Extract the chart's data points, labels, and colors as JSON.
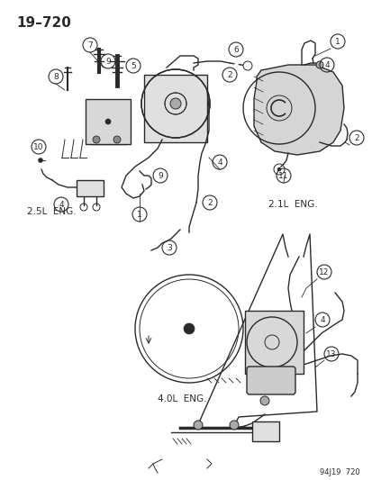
{
  "title": "19–720",
  "bg_color": "#ffffff",
  "c": "#2a2a2a",
  "watermark": "94J19  720",
  "label_25": "2.5L  ENG.",
  "label_21": "2.1L  ENG.",
  "label_40": "4.0L  ENG.",
  "figsize": [
    4.14,
    5.33
  ],
  "dpi": 100
}
